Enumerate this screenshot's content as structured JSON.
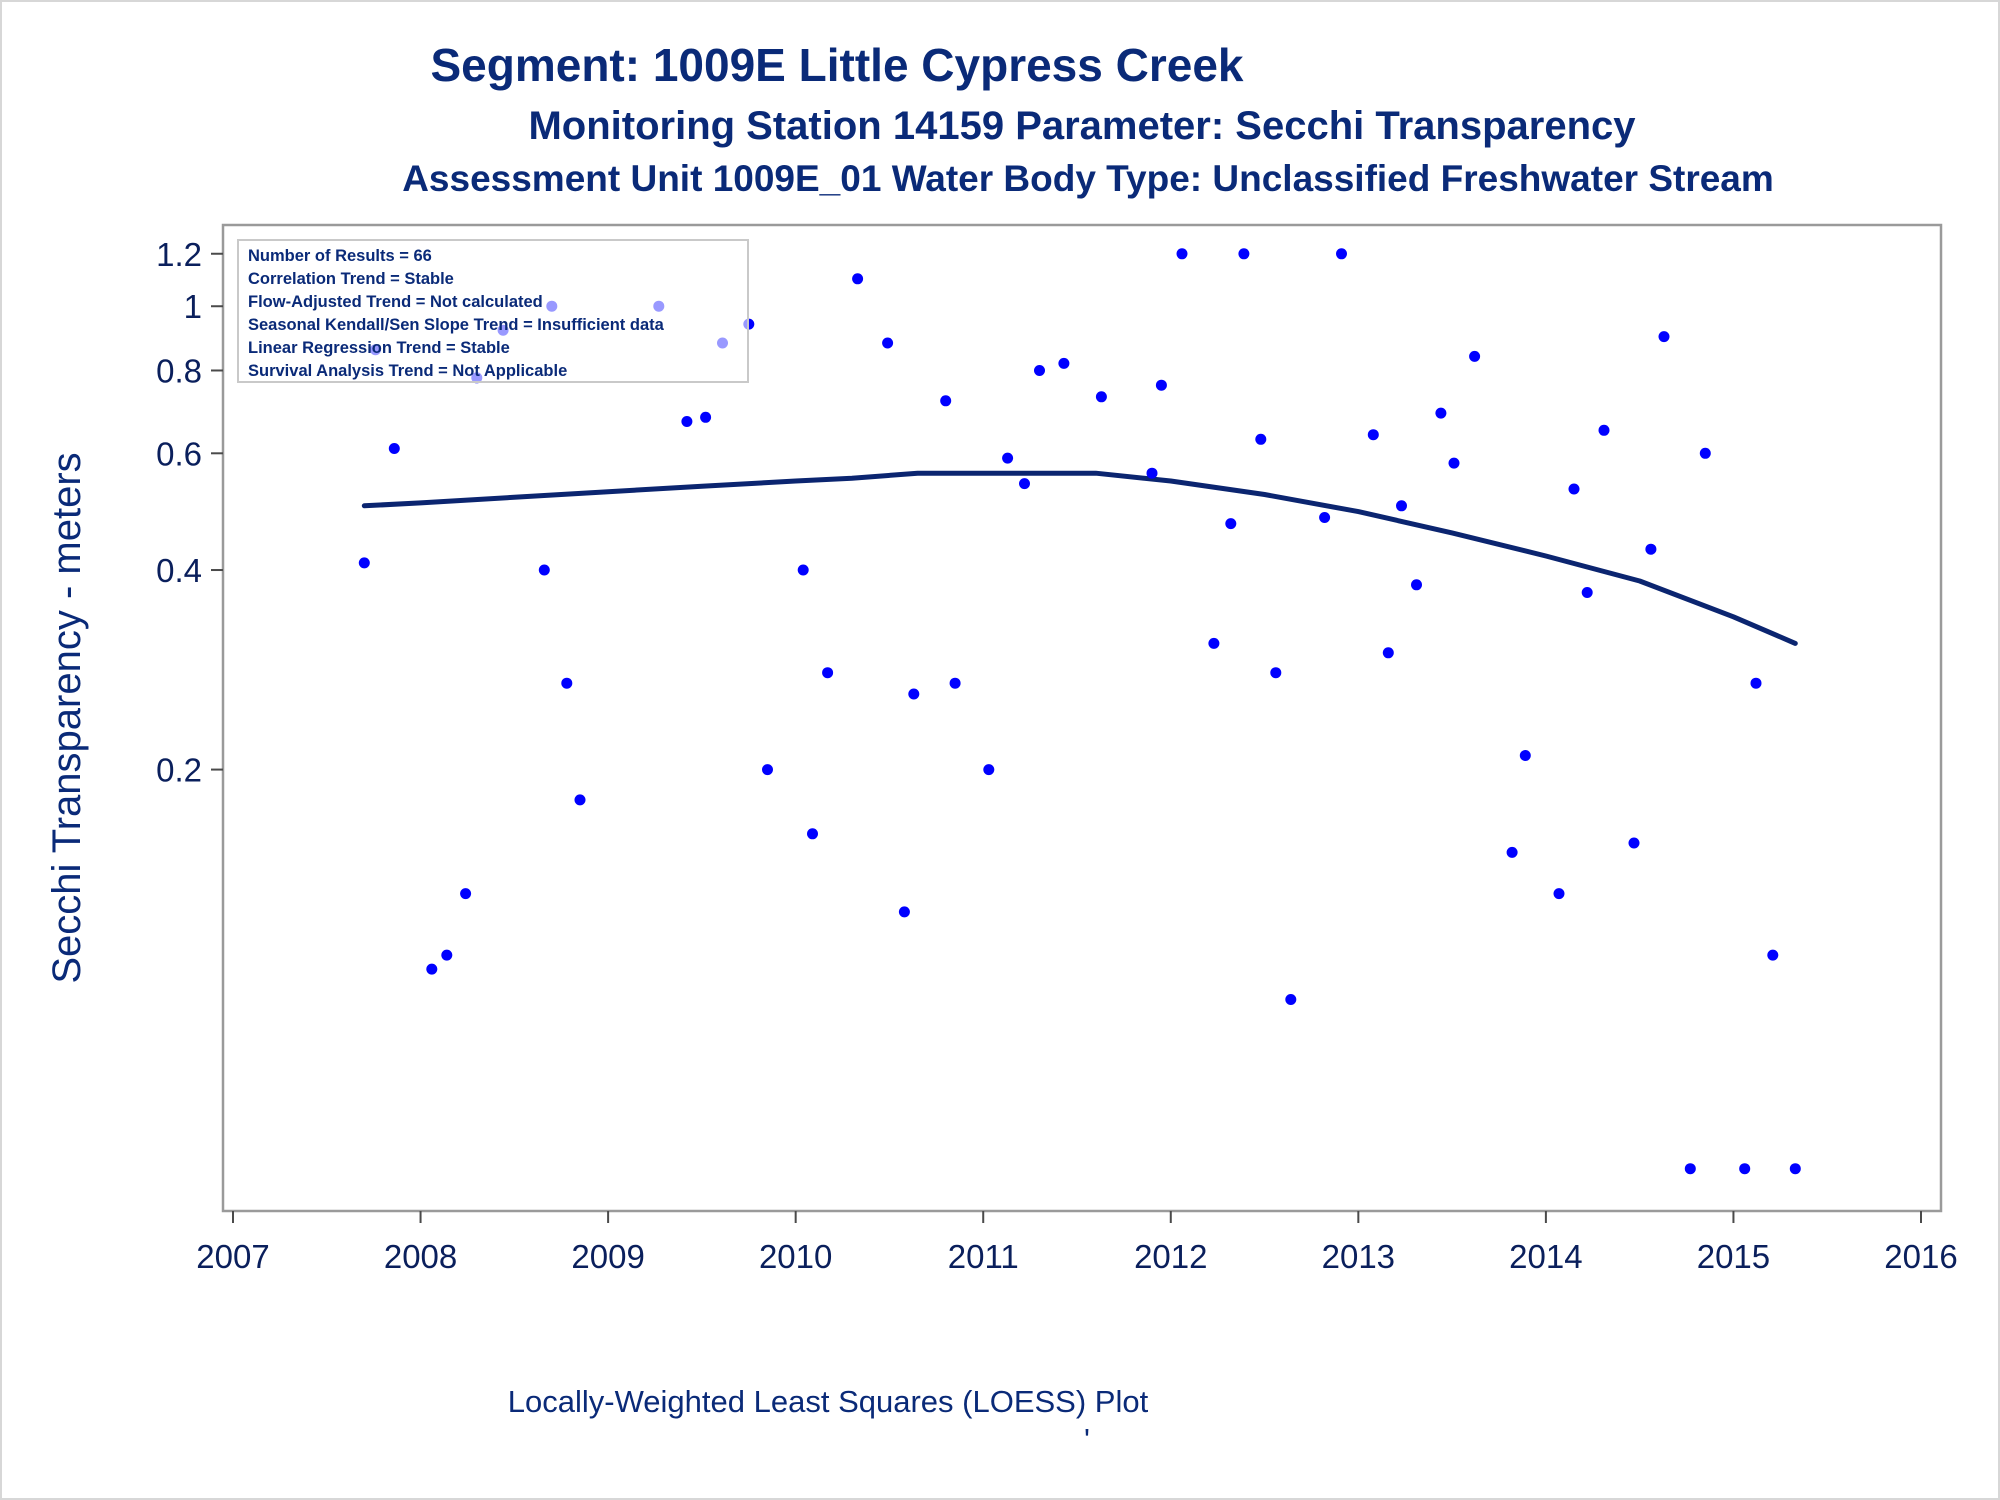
{
  "titles": {
    "line1": "Segment: 1009E  Little Cypress Creek",
    "line2": "Monitoring Station 14159 Parameter: Secchi Transparency",
    "line3": "Assessment Unit 1009E_01   Water Body Type: Unclassified Freshwater Stream"
  },
  "stats_box": [
    "Number of Results = 66",
    "Correlation Trend = Stable",
    "Flow-Adjusted Trend = Not calculated",
    "Seasonal Kendall/Sen Slope Trend = Insufficient data",
    "Linear Regression Trend = Stable",
    "Survival Analysis Trend = Not Applicable"
  ],
  "footnote": "Locally-Weighted Least Squares (LOESS) Plot",
  "footnote_mark": "'",
  "colors": {
    "text": "#0a2a78",
    "points": "#0000ff",
    "loess": "#0b2570",
    "frame": "#9a9a9a"
  },
  "chart_data": {
    "type": "scatter",
    "title": "Segment: 1009E  Little Cypress Creek",
    "xlabel": "",
    "ylabel": "Secchi Transparency - meters",
    "x_scale": "time (years)",
    "y_scale": "log",
    "xlim": [
      2007,
      2016
    ],
    "ylim": [
      0.045,
      1.25
    ],
    "x_ticks": [
      "2007",
      "2008",
      "2009",
      "2010",
      "2011",
      "2012",
      "2013",
      "2014",
      "2015",
      "2016"
    ],
    "y_ticks": [
      {
        "value": 0.2,
        "label": "0.2"
      },
      {
        "value": 0.4,
        "label": "0.4"
      },
      {
        "value": 0.6,
        "label": "0.6"
      },
      {
        "value": 0.8,
        "label": "0.8"
      },
      {
        "value": 1.0,
        "label": "1"
      },
      {
        "value": 1.2,
        "label": "1.2"
      }
    ],
    "grid": false,
    "series": [
      {
        "type": "scatter",
        "points": [
          [
            2007.7,
            0.41
          ],
          [
            2007.76,
            0.86
          ],
          [
            2007.86,
            0.61
          ],
          [
            2008.06,
            0.1
          ],
          [
            2008.14,
            0.105
          ],
          [
            2008.24,
            0.13
          ],
          [
            2008.3,
            0.78
          ],
          [
            2008.44,
            0.92
          ],
          [
            2008.66,
            0.4
          ],
          [
            2008.7,
            1.0
          ],
          [
            2008.78,
            0.27
          ],
          [
            2008.85,
            0.18
          ],
          [
            2009.27,
            1.0
          ],
          [
            2009.42,
            0.67
          ],
          [
            2009.52,
            0.68
          ],
          [
            2009.61,
            0.88
          ],
          [
            2009.75,
            0.94
          ],
          [
            2009.85,
            0.2
          ],
          [
            2010.04,
            0.4
          ],
          [
            2010.09,
            0.16
          ],
          [
            2010.17,
            0.28
          ],
          [
            2010.33,
            1.1
          ],
          [
            2010.49,
            0.88
          ],
          [
            2010.58,
            0.122
          ],
          [
            2010.63,
            0.26
          ],
          [
            2010.8,
            0.72
          ],
          [
            2010.85,
            0.27
          ],
          [
            2011.03,
            0.2
          ],
          [
            2011.13,
            0.59
          ],
          [
            2011.22,
            0.54
          ],
          [
            2011.3,
            0.8
          ],
          [
            2011.43,
            0.82
          ],
          [
            2011.63,
            0.73
          ],
          [
            2011.9,
            0.56
          ],
          [
            2011.95,
            0.76
          ],
          [
            2012.06,
            1.2
          ],
          [
            2012.23,
            0.31
          ],
          [
            2012.32,
            0.47
          ],
          [
            2012.39,
            1.2
          ],
          [
            2012.48,
            0.63
          ],
          [
            2012.56,
            0.28
          ],
          [
            2012.64,
            0.09
          ],
          [
            2012.82,
            0.48
          ],
          [
            2012.91,
            1.2
          ],
          [
            2013.08,
            0.64
          ],
          [
            2013.16,
            0.3
          ],
          [
            2013.23,
            0.5
          ],
          [
            2013.31,
            0.38
          ],
          [
            2013.44,
            0.69
          ],
          [
            2013.51,
            0.58
          ],
          [
            2013.62,
            0.84
          ],
          [
            2013.82,
            0.15
          ],
          [
            2013.89,
            0.21
          ],
          [
            2014.07,
            0.13
          ],
          [
            2014.15,
            0.53
          ],
          [
            2014.22,
            0.37
          ],
          [
            2014.31,
            0.65
          ],
          [
            2014.47,
            0.155
          ],
          [
            2014.56,
            0.43
          ],
          [
            2014.63,
            0.9
          ],
          [
            2014.77,
            0.05
          ],
          [
            2014.85,
            0.6
          ],
          [
            2015.06,
            0.05
          ],
          [
            2015.12,
            0.27
          ],
          [
            2015.21,
            0.105
          ],
          [
            2015.33,
            0.05
          ]
        ]
      },
      {
        "type": "line",
        "points": [
          [
            2007.7,
            0.5
          ],
          [
            2008.0,
            0.505
          ],
          [
            2008.5,
            0.515
          ],
          [
            2009.0,
            0.525
          ],
          [
            2009.5,
            0.535
          ],
          [
            2010.0,
            0.545
          ],
          [
            2010.3,
            0.55
          ],
          [
            2010.65,
            0.56
          ],
          [
            2011.0,
            0.56
          ],
          [
            2011.6,
            0.56
          ],
          [
            2012.0,
            0.545
          ],
          [
            2012.5,
            0.52
          ],
          [
            2013.0,
            0.49
          ],
          [
            2013.5,
            0.455
          ],
          [
            2014.0,
            0.42
          ],
          [
            2014.5,
            0.385
          ],
          [
            2015.0,
            0.34
          ],
          [
            2015.33,
            0.31
          ]
        ]
      }
    ]
  }
}
